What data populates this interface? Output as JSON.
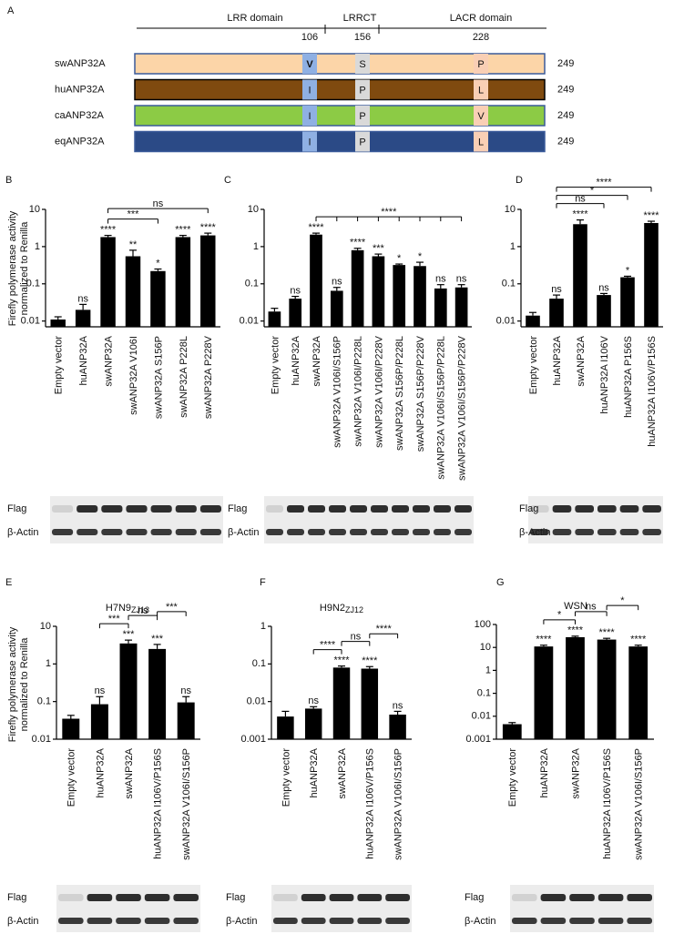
{
  "panel_a": {
    "letter": "A",
    "domains": [
      "LRR domain",
      "LRRCT",
      "LACR domain"
    ],
    "positions": [
      106,
      156,
      228
    ],
    "rows": [
      {
        "name": "swANP32A",
        "color": "#fcd5a8",
        "residues": [
          "V",
          "S",
          "P"
        ],
        "length": 249
      },
      {
        "name": "huANP32A",
        "color": "#7f4a0f",
        "residues": [
          "I",
          "P",
          "L"
        ],
        "length": 249
      },
      {
        "name": "caANP32A",
        "color": "#8ccb45",
        "residues": [
          "I",
          "P",
          "V"
        ],
        "length": 249
      },
      {
        "name": "eqANP32A",
        "color": "#2b4a86",
        "residues": [
          "I",
          "P",
          "L"
        ],
        "length": 249
      }
    ]
  },
  "chart_data": [
    {
      "type": "bar",
      "letter": "B",
      "ylabel": [
        "Firefly polymerase activity",
        "normalized to Renilla"
      ],
      "categories": [
        "Empty vector",
        "huANP32A",
        "swANP32A",
        "swANP32A V106I",
        "swANP32A S156P",
        "swANP32A P228L",
        "swANP32A P228V"
      ],
      "values": [
        0.011,
        0.02,
        1.8,
        0.55,
        0.22,
        1.8,
        2.0
      ],
      "errors": [
        0.002,
        0.008,
        0.2,
        0.25,
        0.03,
        0.2,
        0.3
      ],
      "annotations": [
        null,
        "ns",
        "****",
        "**",
        "*",
        "****",
        "****"
      ],
      "comparisons": [
        {
          "bars": [
            2,
            4
          ],
          "label": "***"
        },
        {
          "bars": [
            2,
            6
          ],
          "label": "ns"
        }
      ],
      "ylim": [
        0.007,
        10
      ],
      "yticks": [
        0.01,
        0.1,
        1,
        10
      ],
      "log_scale": true,
      "color": "#000000",
      "blot_labels": [
        "Flag",
        "β-Actin"
      ]
    },
    {
      "type": "bar",
      "letter": "C",
      "categories": [
        "Empty vector",
        "huANP32A",
        "swANP32A",
        "swANP32A V106I/S156P",
        "swANP32A V106I/P228L",
        "swANP32A V106I/P228V",
        "swANP32A S156P/P228L",
        "swANP32A S156P/P228V",
        "swANP32A V106I/S156P/P228L",
        "swANP32A V106I/S156P/P228V"
      ],
      "values": [
        0.018,
        0.04,
        2.1,
        0.065,
        0.8,
        0.55,
        0.32,
        0.3,
        0.075,
        0.08
      ],
      "errors": [
        0.004,
        0.006,
        0.2,
        0.015,
        0.1,
        0.08,
        0.02,
        0.08,
        0.02,
        0.015
      ],
      "annotations": [
        null,
        "ns",
        "****",
        "ns",
        "****",
        "***",
        "*",
        "*",
        "ns",
        "ns"
      ],
      "comparisons": [
        {
          "bars": [
            2,
            3,
            4,
            5,
            6,
            7,
            8,
            9
          ],
          "label": "****"
        }
      ],
      "ylim": [
        0.007,
        10
      ],
      "yticks": [
        0.01,
        0.1,
        1,
        10
      ],
      "log_scale": true,
      "color": "#000000",
      "blot_labels": [
        "Flag",
        "β-Actin"
      ]
    },
    {
      "type": "bar",
      "letter": "D",
      "categories": [
        "Empty vector",
        "huANP32A",
        "swANP32A",
        "huANP32A I106V",
        "huANP32A P156S",
        "huANP32A I106V/P156S"
      ],
      "values": [
        0.014,
        0.04,
        4.0,
        0.05,
        0.15,
        4.3
      ],
      "errors": [
        0.003,
        0.01,
        1.2,
        0.005,
        0.01,
        0.5
      ],
      "annotations": [
        null,
        "ns",
        "****",
        "ns",
        "*",
        "****"
      ],
      "comparisons": [
        {
          "bars": [
            1,
            3
          ],
          "label": "ns"
        },
        {
          "bars": [
            1,
            4
          ],
          "label": "*"
        },
        {
          "bars": [
            1,
            5
          ],
          "label": "****"
        }
      ],
      "ylim": [
        0.007,
        10
      ],
      "yticks": [
        0.01,
        0.1,
        1,
        10
      ],
      "log_scale": true,
      "color": "#000000",
      "blot_labels": [
        "Flag",
        "β-Actin"
      ]
    },
    {
      "type": "bar",
      "letter": "E",
      "title": "H7N9",
      "title_sub": "ZJ13",
      "ylabel": [
        "Firefly polymerase activity",
        "normalized to Renilla"
      ],
      "categories": [
        "Empty vector",
        "huANP32A",
        "swANP32A",
        "huANP32A I106V/P156S",
        "swANP32A V106I/S156P"
      ],
      "values": [
        0.035,
        0.085,
        3.5,
        2.5,
        0.095
      ],
      "errors": [
        0.008,
        0.05,
        0.8,
        0.8,
        0.04
      ],
      "annotations": [
        null,
        "ns",
        "***",
        "***",
        "ns"
      ],
      "comparisons": [
        {
          "bars": [
            1,
            2
          ],
          "label": "***"
        },
        {
          "bars": [
            2,
            3
          ],
          "label": "ns"
        },
        {
          "bars": [
            3,
            4
          ],
          "label": "***"
        }
      ],
      "ylim": [
        0.01,
        10
      ],
      "yticks": [
        0.01,
        0.1,
        1,
        10
      ],
      "log_scale": true,
      "color": "#000000",
      "blot_labels": [
        "Flag",
        "β-Actin"
      ]
    },
    {
      "type": "bar",
      "letter": "F",
      "title": "H9N2",
      "title_sub": "ZJ12",
      "categories": [
        "Empty vector",
        "huANP32A",
        "swANP32A",
        "huANP32A I106V/P156S",
        "swANP32A V106I/S156P"
      ],
      "values": [
        0.004,
        0.0065,
        0.08,
        0.075,
        0.0045
      ],
      "errors": [
        0.0015,
        0.0008,
        0.008,
        0.01,
        0.001
      ],
      "annotations": [
        null,
        "ns",
        "****",
        "****",
        "ns"
      ],
      "comparisons": [
        {
          "bars": [
            1,
            2
          ],
          "label": "****"
        },
        {
          "bars": [
            2,
            3
          ],
          "label": "ns"
        },
        {
          "bars": [
            3,
            4
          ],
          "label": "****"
        }
      ],
      "ylim": [
        0.001,
        1
      ],
      "yticks": [
        0.001,
        0.01,
        0.1,
        1
      ],
      "log_scale": true,
      "color": "#000000",
      "blot_labels": [
        "Flag",
        "β-Actin"
      ]
    },
    {
      "type": "bar",
      "letter": "G",
      "title": "WSN",
      "categories": [
        "Empty vector",
        "huANP32A",
        "swANP32A",
        "huANP32A I106V/P156S",
        "swANP32A V106I/S156P"
      ],
      "values": [
        0.0045,
        11,
        28,
        22,
        11
      ],
      "errors": [
        0.0008,
        1.5,
        3,
        3,
        1.5
      ],
      "annotations": [
        null,
        "****",
        "****",
        "****",
        "****"
      ],
      "comparisons": [
        {
          "bars": [
            1,
            2
          ],
          "label": "*"
        },
        {
          "bars": [
            2,
            3
          ],
          "label": "ns"
        },
        {
          "bars": [
            3,
            4
          ],
          "label": "*"
        }
      ],
      "ylim": [
        0.001,
        100
      ],
      "yticks": [
        0.001,
        0.01,
        0.1,
        1,
        10,
        100
      ],
      "log_scale": true,
      "color": "#000000",
      "blot_labels": [
        "Flag",
        "β-Actin"
      ]
    }
  ]
}
